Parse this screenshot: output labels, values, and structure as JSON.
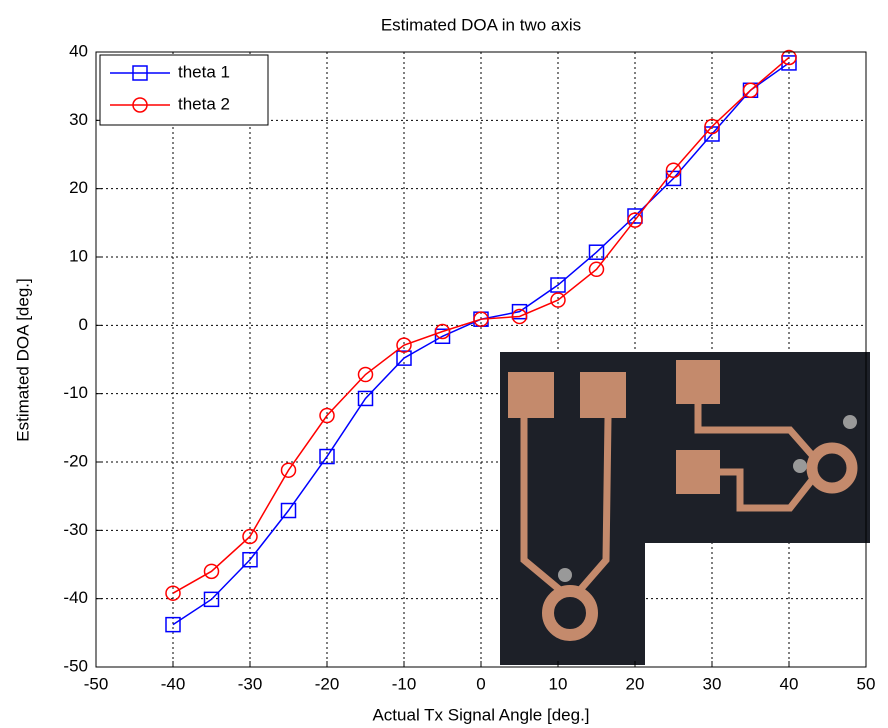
{
  "chart_data": {
    "type": "line",
    "title": "Estimated DOA in two axis",
    "xlabel": "Actual Tx Signal Angle [deg.]",
    "ylabel": "Estimated DOA [deg.]",
    "x": [
      -40,
      -35,
      -30,
      -25,
      -20,
      -15,
      -10,
      -5,
      0,
      5,
      10,
      15,
      20,
      25,
      30,
      35,
      40
    ],
    "series": [
      {
        "name": "theta 1",
        "color": "#0000ff",
        "marker": "square",
        "values": [
          -43.8,
          -40.1,
          -34.3,
          -27.1,
          -19.2,
          -10.7,
          -4.8,
          -1.6,
          0.9,
          2.0,
          5.9,
          10.7,
          16.0,
          21.5,
          28.0,
          34.4,
          38.4
        ]
      },
      {
        "name": "theta 2",
        "color": "#ff0000",
        "marker": "circle",
        "values": [
          -39.2,
          -36.0,
          -30.9,
          -21.2,
          -13.2,
          -7.2,
          -2.9,
          -0.9,
          0.9,
          1.3,
          3.7,
          8.2,
          15.4,
          22.7,
          29.1,
          34.4,
          39.2
        ]
      }
    ],
    "xlim": [
      -50,
      50
    ],
    "xticks": [
      -50,
      -40,
      -30,
      -20,
      -10,
      0,
      10,
      20,
      30,
      40,
      50
    ],
    "ylim": [
      -50,
      40
    ],
    "yticks": [
      -50,
      -40,
      -30,
      -20,
      -10,
      0,
      10,
      20,
      30,
      40
    ],
    "grid": true,
    "legend": "upper left"
  }
}
